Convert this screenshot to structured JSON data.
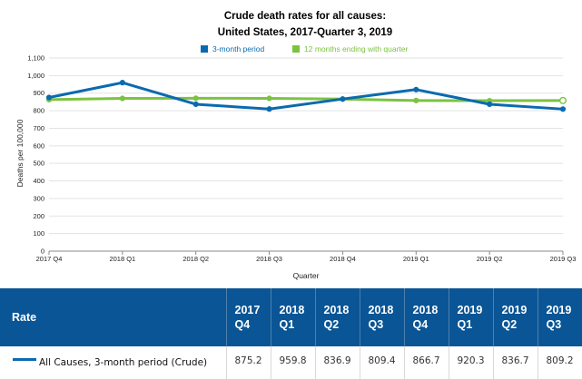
{
  "chart_data": {
    "type": "line",
    "title": "Crude death rates for all causes:",
    "subtitle": "United States, 2017-Quarter 3, 2019",
    "xlabel": "Quarter",
    "ylabel": "Deaths per 100,000",
    "ylim": [
      0,
      1100
    ],
    "yticks": [
      "0",
      "100",
      "200",
      "300",
      "400",
      "500",
      "600",
      "700",
      "800",
      "900",
      "1,000",
      "1,100"
    ],
    "categories": [
      "2017 Q4",
      "2018 Q1",
      "2018 Q2",
      "2018 Q3",
      "2018 Q4",
      "2019 Q1",
      "2019 Q2",
      "2019 Q3"
    ],
    "legend_position": "top",
    "series": [
      {
        "name": "3-month period",
        "color": "#0a6ab0",
        "values": [
          875.2,
          959.8,
          836.9,
          809.4,
          866.7,
          920.3,
          836.7,
          809.2
        ]
      },
      {
        "name": "12 months ending with quarter",
        "color": "#7cc242",
        "values": [
          863,
          870,
          871,
          870,
          866,
          858,
          857,
          858
        ]
      }
    ]
  },
  "table": {
    "rate_header": "Rate",
    "columns": [
      {
        "year": "2017",
        "quarter": "Q4"
      },
      {
        "year": "2018",
        "quarter": "Q1"
      },
      {
        "year": "2018",
        "quarter": "Q2"
      },
      {
        "year": "2018",
        "quarter": "Q3"
      },
      {
        "year": "2018",
        "quarter": "Q4"
      },
      {
        "year": "2019",
        "quarter": "Q1"
      },
      {
        "year": "2019",
        "quarter": "Q2"
      },
      {
        "year": "2019",
        "quarter": "Q3"
      }
    ],
    "rows": [
      {
        "label": "All Causes, 3-month period (Crude)",
        "values": [
          "875.2",
          "959.8",
          "836.9",
          "809.4",
          "866.7",
          "920.3",
          "836.7",
          "809.2"
        ]
      }
    ]
  },
  "colors": {
    "header_bg": "#0a5595",
    "series_blue": "#0a6ab0",
    "series_green": "#7cc242"
  }
}
